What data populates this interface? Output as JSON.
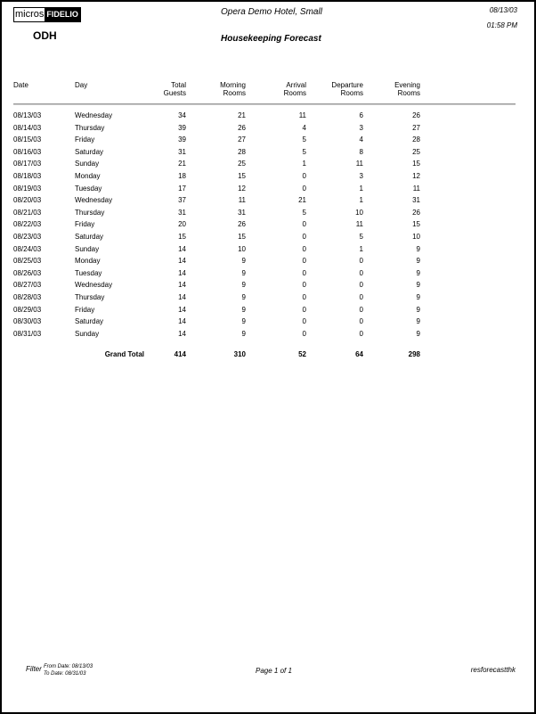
{
  "header": {
    "logo_text": "micros-FIDELIO",
    "logo_part1": "micros",
    "logo_part2": "FIDELIO",
    "property_code": "ODH",
    "hotel_name": "Opera Demo Hotel, Small",
    "report_title": "Housekeeping Forecast",
    "date": "08/13/03",
    "time": "01:58 PM"
  },
  "table": {
    "columns": [
      {
        "line1": "Date",
        "line2": ""
      },
      {
        "line1": "Day",
        "line2": ""
      },
      {
        "line1": "Total",
        "line2": "Guests"
      },
      {
        "line1": "Morning",
        "line2": "Rooms"
      },
      {
        "line1": "Arrival",
        "line2": "Rooms"
      },
      {
        "line1": "Departure",
        "line2": "Rooms"
      },
      {
        "line1": "Evening",
        "line2": "Rooms"
      }
    ],
    "rows": [
      [
        "08/13/03",
        "Wednesday",
        "34",
        "21",
        "11",
        "6",
        "26"
      ],
      [
        "08/14/03",
        "Thursday",
        "39",
        "26",
        "4",
        "3",
        "27"
      ],
      [
        "08/15/03",
        "Friday",
        "39",
        "27",
        "5",
        "4",
        "28"
      ],
      [
        "08/16/03",
        "Saturday",
        "31",
        "28",
        "5",
        "8",
        "25"
      ],
      [
        "08/17/03",
        "Sunday",
        "21",
        "25",
        "1",
        "11",
        "15"
      ],
      [
        "08/18/03",
        "Monday",
        "18",
        "15",
        "0",
        "3",
        "12"
      ],
      [
        "08/19/03",
        "Tuesday",
        "17",
        "12",
        "0",
        "1",
        "11"
      ],
      [
        "08/20/03",
        "Wednesday",
        "37",
        "11",
        "21",
        "1",
        "31"
      ],
      [
        "08/21/03",
        "Thursday",
        "31",
        "31",
        "5",
        "10",
        "26"
      ],
      [
        "08/22/03",
        "Friday",
        "20",
        "26",
        "0",
        "11",
        "15"
      ],
      [
        "08/23/03",
        "Saturday",
        "15",
        "15",
        "0",
        "5",
        "10"
      ],
      [
        "08/24/03",
        "Sunday",
        "14",
        "10",
        "0",
        "1",
        "9"
      ],
      [
        "08/25/03",
        "Monday",
        "14",
        "9",
        "0",
        "0",
        "9"
      ],
      [
        "08/26/03",
        "Tuesday",
        "14",
        "9",
        "0",
        "0",
        "9"
      ],
      [
        "08/27/03",
        "Wednesday",
        "14",
        "9",
        "0",
        "0",
        "9"
      ],
      [
        "08/28/03",
        "Thursday",
        "14",
        "9",
        "0",
        "0",
        "9"
      ],
      [
        "08/29/03",
        "Friday",
        "14",
        "9",
        "0",
        "0",
        "9"
      ],
      [
        "08/30/03",
        "Saturday",
        "14",
        "9",
        "0",
        "0",
        "9"
      ],
      [
        "08/31/03",
        "Sunday",
        "14",
        "9",
        "0",
        "0",
        "9"
      ]
    ],
    "grand_total": {
      "label": "Grand Total",
      "values": [
        "414",
        "310",
        "52",
        "64",
        "298"
      ]
    }
  },
  "footer": {
    "filter_label": "Filter",
    "from_date": "From Date:  08/13/03",
    "to_date": "To Date:  08/31/03",
    "page": "Page 1  of 1",
    "report_name": "resforecastthk"
  }
}
